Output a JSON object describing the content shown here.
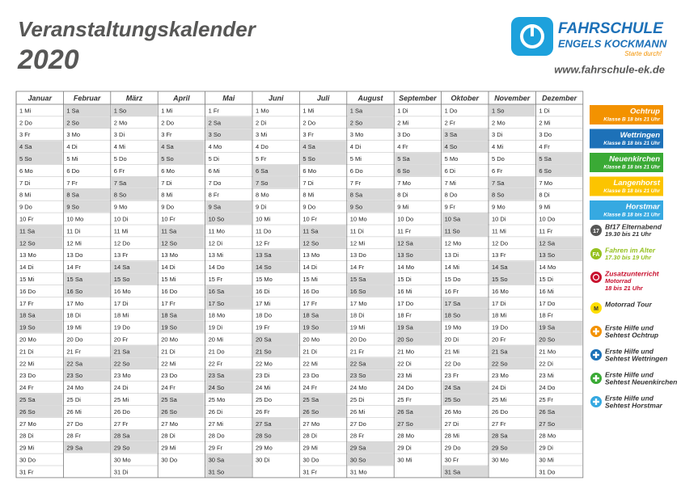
{
  "header": {
    "title": "Veranstaltungskalender",
    "year": "2020",
    "logo_line1": "FAHRSCHULE",
    "logo_line2": "ENGELS KOCKMANN",
    "logo_slogan": "Starte durch!",
    "url": "www.fahrschule-ek.de"
  },
  "calendar": {
    "months": [
      {
        "name": "Januar",
        "days": [
          "1 Mi",
          "2 Do",
          "3 Fr",
          "4 Sa",
          "5 So",
          "6 Mo",
          "7 Di",
          "8 Mi",
          "9 Do",
          "10 Fr",
          "11 Sa",
          "12 So",
          "13 Mo",
          "14 Di",
          "15 Mi",
          "16 Do",
          "17 Fr",
          "18 Sa",
          "19 So",
          "20 Mo",
          "21 Di",
          "22 Mi",
          "23 Do",
          "24 Fr",
          "25 Sa",
          "26 So",
          "27 Mo",
          "28 Di",
          "29 Mi",
          "30 Do",
          "31 Fr"
        ]
      },
      {
        "name": "Februar",
        "days": [
          "1 Sa",
          "2 So",
          "3 Mo",
          "4 Di",
          "5 Mi",
          "6 Do",
          "7 Fr",
          "8 Sa",
          "9 So",
          "10 Mo",
          "11 Di",
          "12 Mi",
          "13 Do",
          "14 Fr",
          "15 Sa",
          "16 So",
          "17 Mo",
          "18 Di",
          "19 Mi",
          "20 Do",
          "21 Fr",
          "22 Sa",
          "23 So",
          "24 Mo",
          "25 Di",
          "26 Mi",
          "27 Do",
          "28 Fr",
          "29 Sa"
        ]
      },
      {
        "name": "März",
        "days": [
          "1 So",
          "2 Mo",
          "3 Di",
          "4 Mi",
          "5 Do",
          "6 Fr",
          "7 Sa",
          "8 So",
          "9 Mo",
          "10 Di",
          "11 Mi",
          "12 Do",
          "13 Fr",
          "14 Sa",
          "15 So",
          "16 Mo",
          "17 Di",
          "18 Mi",
          "19 Do",
          "20 Fr",
          "21 Sa",
          "22 So",
          "23 Mo",
          "24 Di",
          "25 Mi",
          "26 Do",
          "27 Fr",
          "28 Sa",
          "29 So",
          "30 Mo",
          "31 Di"
        ]
      },
      {
        "name": "April",
        "days": [
          "1 Mi",
          "2 Do",
          "3 Fr",
          "4 Sa",
          "5 So",
          "6 Mo",
          "7 Di",
          "8 Mi",
          "9 Do",
          "10 Fr",
          "11 Sa",
          "12 So",
          "13 Mo",
          "14 Di",
          "15 Mi",
          "16 Do",
          "17 Fr",
          "18 Sa",
          "19 So",
          "20 Mo",
          "21 Di",
          "22 Mi",
          "23 Do",
          "24 Fr",
          "25 Sa",
          "26 So",
          "27 Mo",
          "28 Di",
          "29 Mi",
          "30 Do"
        ]
      },
      {
        "name": "Mai",
        "days": [
          "1 Fr",
          "2 Sa",
          "3 So",
          "4 Mo",
          "5 Di",
          "6 Mi",
          "7 Do",
          "8 Fr",
          "9 Sa",
          "10 So",
          "11 Mo",
          "12 Di",
          "13 Mi",
          "14 Do",
          "15 Fr",
          "16 Sa",
          "17 So",
          "18 Mo",
          "19 Di",
          "20 Mi",
          "21 Do",
          "22 Fr",
          "23 Sa",
          "24 So",
          "25 Mo",
          "26 Di",
          "27 Mi",
          "28 Do",
          "29 Fr",
          "30 Sa",
          "31 So"
        ]
      },
      {
        "name": "Juni",
        "days": [
          "1 Mo",
          "2 Di",
          "3 Mi",
          "4 Do",
          "5 Fr",
          "6 Sa",
          "7 So",
          "8 Mo",
          "9 Di",
          "10 Mi",
          "11 Do",
          "12 Fr",
          "13 Sa",
          "14 So",
          "15 Mo",
          "16 Di",
          "17 Mi",
          "18 Do",
          "19 Fr",
          "20 Sa",
          "21 So",
          "22 Mo",
          "23 Di",
          "24 Mi",
          "25 Do",
          "26 Fr",
          "27 Sa",
          "28 So",
          "29 Mo",
          "30 Di"
        ]
      },
      {
        "name": "Juli",
        "days": [
          "1 Mi",
          "2 Do",
          "3 Fr",
          "4 Sa",
          "5 So",
          "6 Mo",
          "7 Di",
          "8 Mi",
          "9 Do",
          "10 Fr",
          "11 Sa",
          "12 So",
          "13 Mo",
          "14 Di",
          "15 Mi",
          "16 Do",
          "17 Fr",
          "18 Sa",
          "19 So",
          "20 Mo",
          "21 Di",
          "22 Mi",
          "23 Do",
          "24 Fr",
          "25 Sa",
          "26 So",
          "27 Mo",
          "28 Di",
          "29 Mi",
          "30 Do",
          "31 Fr"
        ]
      },
      {
        "name": "August",
        "days": [
          "1 Sa",
          "2 So",
          "3 Mo",
          "4 Di",
          "5 Mi",
          "6 Do",
          "7 Fr",
          "8 Sa",
          "9 So",
          "10 Mo",
          "11 Di",
          "12 Mi",
          "13 Do",
          "14 Fr",
          "15 Sa",
          "16 So",
          "17 Mo",
          "18 Di",
          "19 Mi",
          "20 Do",
          "21 Fr",
          "22 Sa",
          "23 So",
          "24 Mo",
          "25 Di",
          "26 Mi",
          "27 Do",
          "28 Fr",
          "29 Sa",
          "30 So",
          "31 Mo"
        ]
      },
      {
        "name": "September",
        "days": [
          "1 Di",
          "2 Mi",
          "3 Do",
          "4 Fr",
          "5 Sa",
          "6 So",
          "7 Mo",
          "8 Di",
          "9 Mi",
          "10 Do",
          "11 Fr",
          "12 Sa",
          "13 So",
          "14 Mo",
          "15 Di",
          "16 Mi",
          "17 Do",
          "18 Fr",
          "19 Sa",
          "20 So",
          "21 Mo",
          "22 Di",
          "23 Mi",
          "24 Do",
          "25 Fr",
          "26 Sa",
          "27 So",
          "28 Mo",
          "29 Di",
          "30 Mi"
        ]
      },
      {
        "name": "Oktober",
        "days": [
          "1 Do",
          "2 Fr",
          "3 Sa",
          "4 So",
          "5 Mo",
          "6 Di",
          "7 Mi",
          "8 Do",
          "9 Fr",
          "10 Sa",
          "11 So",
          "12 Mo",
          "13 Di",
          "14 Mi",
          "15 Do",
          "16 Fr",
          "17 Sa",
          "18 So",
          "19 Mo",
          "20 Di",
          "21 Mi",
          "22 Do",
          "23 Fr",
          "24 Sa",
          "25 So",
          "26 Mo",
          "27 Di",
          "28 Mi",
          "29 Do",
          "30 Fr",
          "31 Sa"
        ]
      },
      {
        "name": "November",
        "days": [
          "1 So",
          "2 Mo",
          "3 Di",
          "4 Mi",
          "5 Do",
          "6 Fr",
          "7 Sa",
          "8 So",
          "9 Mo",
          "10 Di",
          "11 Mi",
          "12 Do",
          "13 Fr",
          "14 Sa",
          "15 So",
          "16 Mo",
          "17 Di",
          "18 Mi",
          "19 Do",
          "20 Fr",
          "21 Sa",
          "22 So",
          "23 Mo",
          "24 Di",
          "25 Mi",
          "26 Do",
          "27 Fr",
          "28 Sa",
          "29 So",
          "30 Mo"
        ]
      },
      {
        "name": "Dezember",
        "days": [
          "1 Di",
          "2 Mi",
          "3 Do",
          "4 Fr",
          "5 Sa",
          "6 So",
          "7 Mo",
          "8 Di",
          "9 Mi",
          "10 Do",
          "11 Fr",
          "12 Sa",
          "13 So",
          "14 Mo",
          "15 Di",
          "16 Mi",
          "17 Do",
          "18 Fr",
          "19 Sa",
          "20 So",
          "21 Mo",
          "22 Di",
          "23 Mi",
          "24 Do",
          "25 Fr",
          "26 Sa",
          "27 So",
          "28 Mo",
          "29 Di",
          "30 Mi",
          "31 Do"
        ]
      }
    ]
  },
  "legend": {
    "courses": [
      {
        "name": "Ochtrup",
        "note": "Klasse B 18 bis 21 Uhr",
        "color": "#f39200"
      },
      {
        "name": "Wettringen",
        "note": "Klasse B 18 bis 21 Uhr",
        "color": "#1d71b8"
      },
      {
        "name": "Neuenkirchen",
        "note": "Klasse B 18 bis 21 Uhr",
        "color": "#3aaa35"
      },
      {
        "name": "Langenhorst",
        "note": "Klasse B 18 bis 21 Uhr",
        "color": "#fcc400"
      },
      {
        "name": "Horstmar",
        "note": "Klasse B 18 bis 21 Uhr",
        "color": "#36a9e1"
      }
    ],
    "events": [
      {
        "icon": "17",
        "lines": [
          "Bf17 Elternabend",
          "19.30 bis 21 Uhr"
        ],
        "color": "#575756"
      },
      {
        "icon": "FA",
        "lines": [
          "Fahren im Alter",
          "17.30 bis 19 Uhr"
        ],
        "color": "#95c11f"
      },
      {
        "lines": [
          "Zusatzunterricht",
          "Motorrad",
          "18 bis 21 Uhr"
        ],
        "color": "#c8102e"
      },
      {
        "icon": "M",
        "lines": [
          "Motorrad Tour"
        ],
        "color": "#ffde00"
      },
      {
        "lines": [
          "Erste Hilfe und",
          "Sehtest Ochtrup"
        ],
        "color": "#f39200"
      },
      {
        "lines": [
          "Erste Hilfe und",
          "Sehtest Wettringen"
        ],
        "color": "#1d71b8"
      },
      {
        "lines": [
          "Erste Hilfe und",
          "Sehtest Neuenkirchen"
        ],
        "color": "#3aaa35"
      },
      {
        "lines": [
          "Erste Hilfe und",
          "Sehtest Horstmar"
        ],
        "color": "#36a9e1"
      }
    ]
  }
}
